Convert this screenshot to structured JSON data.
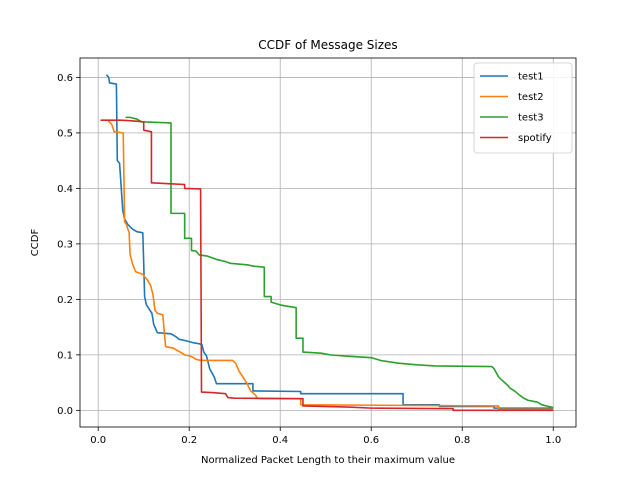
{
  "chart_data": {
    "type": "line",
    "title": "CCDF of Message Sizes",
    "xlabel": "Normalized Packet Length to their maximum value",
    "ylabel": "CCDF",
    "xlim": [
      -0.04,
      1.05
    ],
    "ylim": [
      -0.03,
      0.635
    ],
    "xticks": [
      0.0,
      0.2,
      0.4,
      0.6,
      0.8,
      1.0
    ],
    "xtick_labels": [
      "0.0",
      "0.2",
      "0.4",
      "0.6",
      "0.8",
      "1.0"
    ],
    "yticks": [
      0.0,
      0.1,
      0.2,
      0.3,
      0.4,
      0.5,
      0.6
    ],
    "ytick_labels": [
      "0.0",
      "0.1",
      "0.2",
      "0.3",
      "0.4",
      "0.5",
      "0.6"
    ],
    "grid": true,
    "legend_position": "top-right",
    "series": [
      {
        "name": "test1",
        "color": "#1f77b4",
        "points": [
          [
            0.018,
            0.605
          ],
          [
            0.023,
            0.6
          ],
          [
            0.025,
            0.59
          ],
          [
            0.04,
            0.588
          ],
          [
            0.042,
            0.45
          ],
          [
            0.047,
            0.445
          ],
          [
            0.054,
            0.36
          ],
          [
            0.058,
            0.345
          ],
          [
            0.065,
            0.335
          ],
          [
            0.075,
            0.327
          ],
          [
            0.085,
            0.322
          ],
          [
            0.098,
            0.32
          ],
          [
            0.1,
            0.265
          ],
          [
            0.102,
            0.205
          ],
          [
            0.106,
            0.19
          ],
          [
            0.11,
            0.185
          ],
          [
            0.118,
            0.175
          ],
          [
            0.122,
            0.155
          ],
          [
            0.13,
            0.14
          ],
          [
            0.16,
            0.138
          ],
          [
            0.172,
            0.132
          ],
          [
            0.178,
            0.128
          ],
          [
            0.195,
            0.125
          ],
          [
            0.208,
            0.122
          ],
          [
            0.222,
            0.12
          ],
          [
            0.228,
            0.118
          ],
          [
            0.232,
            0.105
          ],
          [
            0.238,
            0.098
          ],
          [
            0.245,
            0.075
          ],
          [
            0.255,
            0.06
          ],
          [
            0.26,
            0.048
          ],
          [
            0.34,
            0.048
          ],
          [
            0.34,
            0.035
          ],
          [
            0.445,
            0.034
          ],
          [
            0.445,
            0.03
          ],
          [
            0.67,
            0.03
          ],
          [
            0.67,
            0.01
          ],
          [
            0.75,
            0.01
          ],
          [
            0.75,
            0.007
          ],
          [
            0.87,
            0.007
          ],
          [
            0.87,
            0.004
          ],
          [
            1.0,
            0.004
          ]
        ]
      },
      {
        "name": "test2",
        "color": "#ff7f0e",
        "points": [
          [
            0.022,
            0.522
          ],
          [
            0.03,
            0.515
          ],
          [
            0.035,
            0.502
          ],
          [
            0.055,
            0.5
          ],
          [
            0.058,
            0.34
          ],
          [
            0.062,
            0.335
          ],
          [
            0.068,
            0.32
          ],
          [
            0.07,
            0.282
          ],
          [
            0.075,
            0.265
          ],
          [
            0.082,
            0.25
          ],
          [
            0.098,
            0.245
          ],
          [
            0.108,
            0.235
          ],
          [
            0.115,
            0.225
          ],
          [
            0.12,
            0.21
          ],
          [
            0.125,
            0.18
          ],
          [
            0.13,
            0.175
          ],
          [
            0.142,
            0.172
          ],
          [
            0.148,
            0.115
          ],
          [
            0.165,
            0.112
          ],
          [
            0.18,
            0.105
          ],
          [
            0.19,
            0.1
          ],
          [
            0.205,
            0.097
          ],
          [
            0.215,
            0.092
          ],
          [
            0.225,
            0.09
          ],
          [
            0.295,
            0.09
          ],
          [
            0.302,
            0.085
          ],
          [
            0.31,
            0.07
          ],
          [
            0.318,
            0.06
          ],
          [
            0.326,
            0.05
          ],
          [
            0.335,
            0.035
          ],
          [
            0.345,
            0.028
          ],
          [
            0.35,
            0.022
          ],
          [
            0.36,
            0.021
          ],
          [
            0.445,
            0.021
          ],
          [
            0.445,
            0.01
          ],
          [
            0.88,
            0.008
          ],
          [
            0.88,
            0.002
          ],
          [
            1.0,
            0.002
          ]
        ]
      },
      {
        "name": "test3",
        "color": "#2ca02c",
        "points": [
          [
            0.06,
            0.528
          ],
          [
            0.07,
            0.528
          ],
          [
            0.085,
            0.525
          ],
          [
            0.095,
            0.52
          ],
          [
            0.16,
            0.518
          ],
          [
            0.16,
            0.355
          ],
          [
            0.19,
            0.355
          ],
          [
            0.19,
            0.31
          ],
          [
            0.205,
            0.31
          ],
          [
            0.205,
            0.288
          ],
          [
            0.215,
            0.287
          ],
          [
            0.222,
            0.28
          ],
          [
            0.24,
            0.278
          ],
          [
            0.26,
            0.272
          ],
          [
            0.28,
            0.268
          ],
          [
            0.29,
            0.265
          ],
          [
            0.33,
            0.262
          ],
          [
            0.34,
            0.26
          ],
          [
            0.365,
            0.258
          ],
          [
            0.365,
            0.205
          ],
          [
            0.38,
            0.205
          ],
          [
            0.38,
            0.195
          ],
          [
            0.4,
            0.19
          ],
          [
            0.42,
            0.187
          ],
          [
            0.435,
            0.185
          ],
          [
            0.435,
            0.13
          ],
          [
            0.45,
            0.13
          ],
          [
            0.45,
            0.105
          ],
          [
            0.49,
            0.103
          ],
          [
            0.51,
            0.1
          ],
          [
            0.54,
            0.098
          ],
          [
            0.6,
            0.095
          ],
          [
            0.62,
            0.09
          ],
          [
            0.66,
            0.085
          ],
          [
            0.7,
            0.082
          ],
          [
            0.74,
            0.08
          ],
          [
            0.865,
            0.079
          ],
          [
            0.87,
            0.075
          ],
          [
            0.88,
            0.06
          ],
          [
            0.9,
            0.045
          ],
          [
            0.905,
            0.04
          ],
          [
            0.915,
            0.035
          ],
          [
            0.925,
            0.028
          ],
          [
            0.935,
            0.022
          ],
          [
            0.945,
            0.018
          ],
          [
            0.965,
            0.015
          ],
          [
            0.975,
            0.01
          ],
          [
            0.99,
            0.007
          ],
          [
            1.0,
            0.005
          ]
        ]
      },
      {
        "name": "spotify",
        "color": "#d62728",
        "points": [
          [
            0.005,
            0.523
          ],
          [
            0.05,
            0.523
          ],
          [
            0.07,
            0.522
          ],
          [
            0.1,
            0.52
          ],
          [
            0.1,
            0.505
          ],
          [
            0.117,
            0.502
          ],
          [
            0.117,
            0.41
          ],
          [
            0.165,
            0.408
          ],
          [
            0.19,
            0.407
          ],
          [
            0.19,
            0.4
          ],
          [
            0.225,
            0.399
          ],
          [
            0.227,
            0.033
          ],
          [
            0.25,
            0.032
          ],
          [
            0.28,
            0.03
          ],
          [
            0.285,
            0.023
          ],
          [
            0.3,
            0.022
          ],
          [
            0.45,
            0.021
          ],
          [
            0.45,
            0.008
          ],
          [
            0.55,
            0.006
          ],
          [
            0.6,
            0.004
          ],
          [
            0.78,
            0.003
          ],
          [
            0.78,
            0.0
          ],
          [
            1.0,
            0.0
          ]
        ]
      }
    ]
  }
}
